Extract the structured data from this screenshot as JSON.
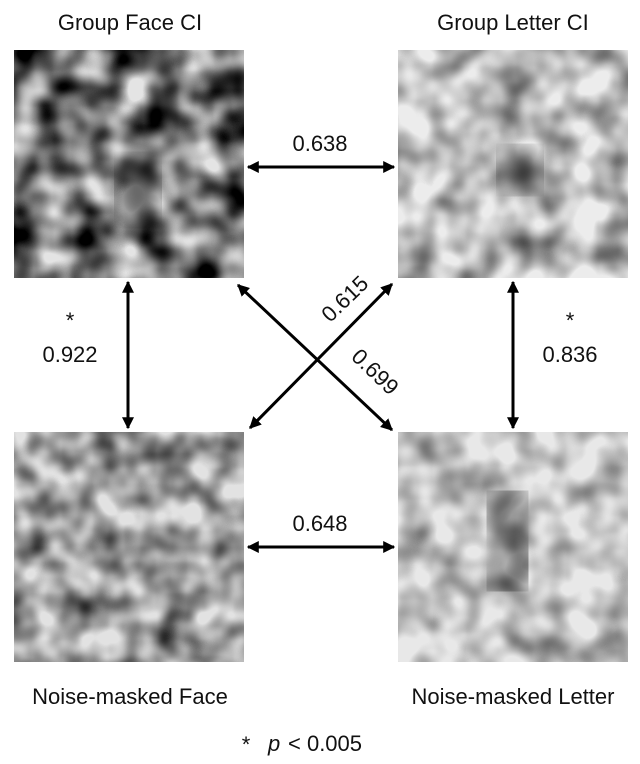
{
  "nodes": [
    {
      "label": "Group Face CI"
    },
    {
      "label": "Group Letter CI"
    },
    {
      "label": "Noise-masked Face"
    },
    {
      "label": "Noise-masked Letter"
    }
  ],
  "edges": [
    {
      "label": "0.638"
    },
    {
      "label": "0.648"
    },
    {
      "label": "0.922",
      "marker": "*"
    },
    {
      "label": "0.836",
      "marker": "*"
    },
    {
      "label": "0.615"
    },
    {
      "label": "0.699"
    }
  ],
  "legend": {
    "symbol": "*",
    "variable": "p",
    "condition": "< 0.005"
  }
}
